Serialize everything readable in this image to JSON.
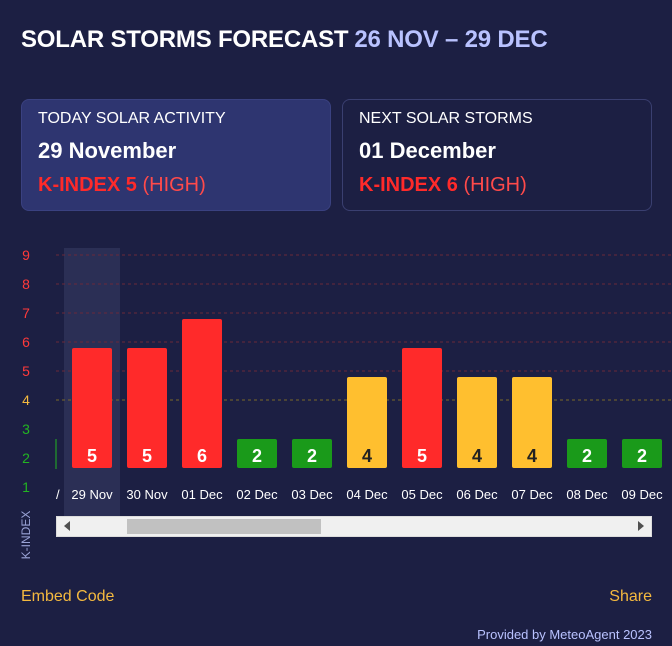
{
  "header": {
    "title": "SOLAR STORMS FORECAST",
    "range": "26 NOV – 29 DEC"
  },
  "today_card": {
    "label": "TODAY SOLAR ACTIVITY",
    "date": "29 November",
    "k_label": "K-INDEX 5",
    "level": "(HIGH)"
  },
  "next_card": {
    "label": "NEXT SOLAR STORMS",
    "date": "01 December",
    "k_label": "K-INDEX 6",
    "level": "(HIGH)"
  },
  "footer": {
    "embed": "Embed Code",
    "share": "Share",
    "provided": "Provided by MeteoAgent 2023"
  },
  "colors": {
    "high": "#ff2a2a",
    "moderate": "#ffbf2f",
    "low": "#1a9a1a",
    "tick_low": "#22b422",
    "tick_mid": "#f4b93f",
    "tick_high": "#ff3a3a"
  },
  "chart_data": {
    "type": "bar",
    "ylabel": "K-INDEX",
    "ylim": [
      1,
      9
    ],
    "yticks": [
      1,
      2,
      3,
      4,
      5,
      6,
      7,
      8,
      9
    ],
    "highlighted_category": "29 Nov",
    "partial_left_label": "/",
    "categories": [
      "29 Nov",
      "30 Nov",
      "01 Dec",
      "02 Dec",
      "03 Dec",
      "04 Dec",
      "05 Dec",
      "06 Dec",
      "07 Dec",
      "08 Dec",
      "09 Dec"
    ],
    "values": [
      5,
      5,
      6,
      2,
      2,
      4,
      5,
      4,
      4,
      2,
      2
    ]
  }
}
